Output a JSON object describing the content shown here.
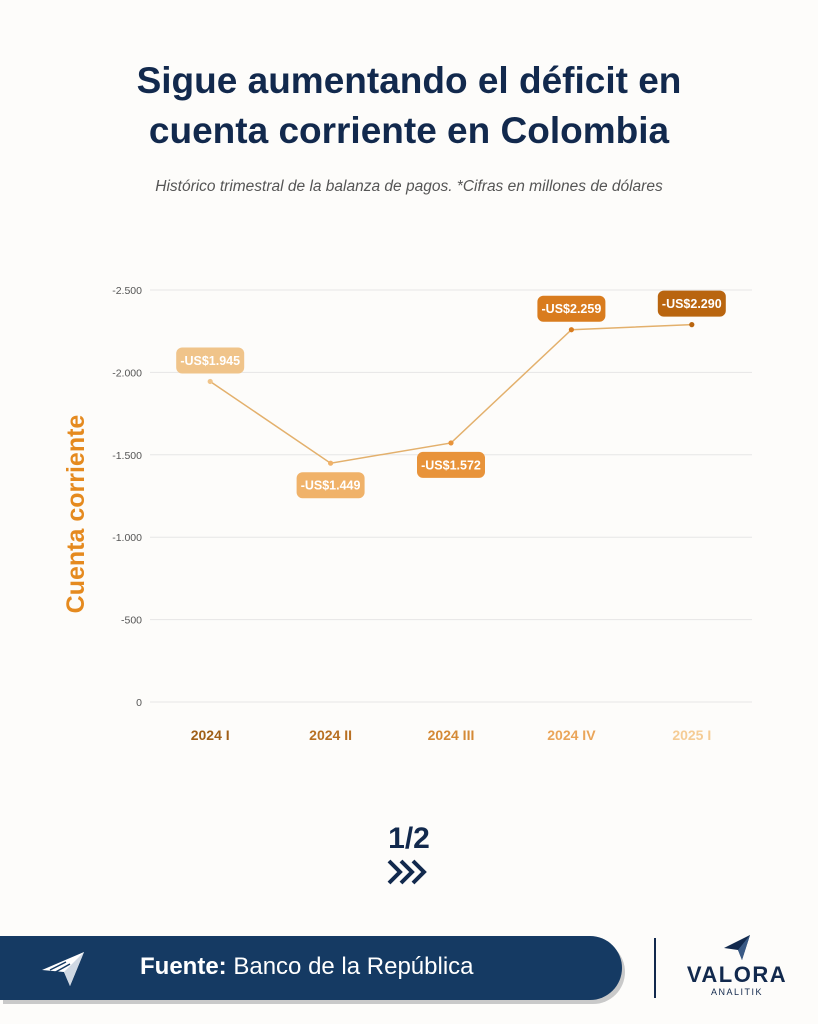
{
  "header": {
    "title_line1": "Sigue aumentando el déficit en",
    "title_line2": "cuenta corriente en Colombia",
    "subtitle": "Histórico trimestral de la balanza de pagos. *Cifras en millones de dólares"
  },
  "chart_data": {
    "type": "line",
    "title": "Sigue aumentando el déficit en cuenta corriente en Colombia",
    "subtitle": "Histórico trimestral de la balanza de pagos. *Cifras en millones de dólares",
    "ylabel": "Cuenta corriente",
    "xlabel": "",
    "categories": [
      "2024 I",
      "2024 II",
      "2024 III",
      "2024 IV",
      "2025 I"
    ],
    "values": [
      -1945,
      -1449,
      -1572,
      -2259,
      -2290
    ],
    "data_labels": [
      "-US$1.945",
      "-US$1.449",
      "-US$1.572",
      "-US$2.259",
      "-US$2.290"
    ],
    "ylim": [
      0,
      -2500
    ],
    "y_ticks": [
      0,
      -500,
      -1000,
      -1500,
      -2000,
      -2500
    ],
    "y_tick_labels": [
      "0",
      "-500",
      "-1.000",
      "-1.500",
      "-2.000",
      "-2.500"
    ],
    "y_axis_inverted": true,
    "grid": true,
    "line_color": "#e3b06c",
    "label_colors": [
      "#f0c48a",
      "#f0b269",
      "#e8933a",
      "#d97c1e",
      "#b9650f"
    ],
    "category_colors": [
      "#a05f17",
      "#b87023",
      "#d48936",
      "#eaa559",
      "#f5cc95"
    ],
    "ylabel_color": "#e58a1f"
  },
  "pager": {
    "label": "1/2"
  },
  "footer": {
    "source_label": "Fuente:",
    "source_value": "Banco de la República",
    "bar_color": "#153a63"
  },
  "brand": {
    "name": "VALORA",
    "sub": "ANALITIK"
  }
}
